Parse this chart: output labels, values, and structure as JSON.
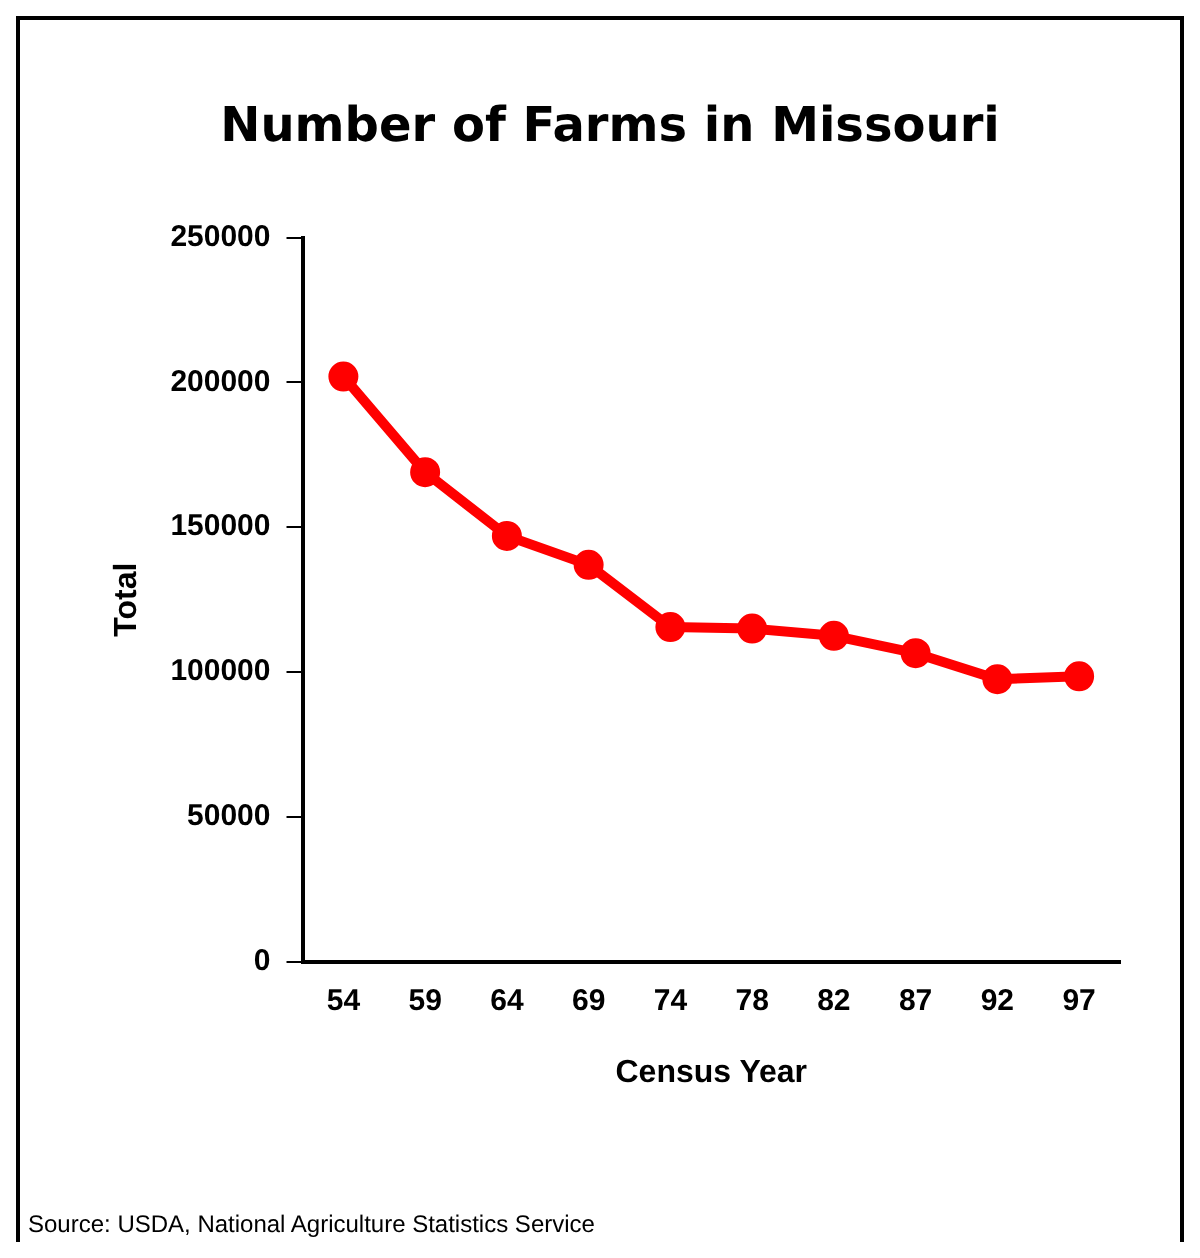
{
  "chart_data": {
    "type": "line",
    "title": "Number of Farms in Missouri",
    "xlabel": "Census Year",
    "ylabel": "Total",
    "categories": [
      "54",
      "59",
      "64",
      "69",
      "74",
      "78",
      "82",
      "87",
      "92",
      "97"
    ],
    "series": [
      {
        "color": "#ff0000",
        "values": [
          202000,
          169000,
          147000,
          137000,
          115500,
          115000,
          112500,
          106500,
          97500,
          98500
        ]
      }
    ],
    "ylim": [
      0,
      250000
    ],
    "yticks": [
      0,
      50000,
      100000,
      150000,
      200000,
      250000
    ],
    "grid": false,
    "legend": false,
    "marker": "circle",
    "line_style": "solid",
    "annotations": [
      "Source: USDA, National Agriculture Statistics Service"
    ]
  }
}
